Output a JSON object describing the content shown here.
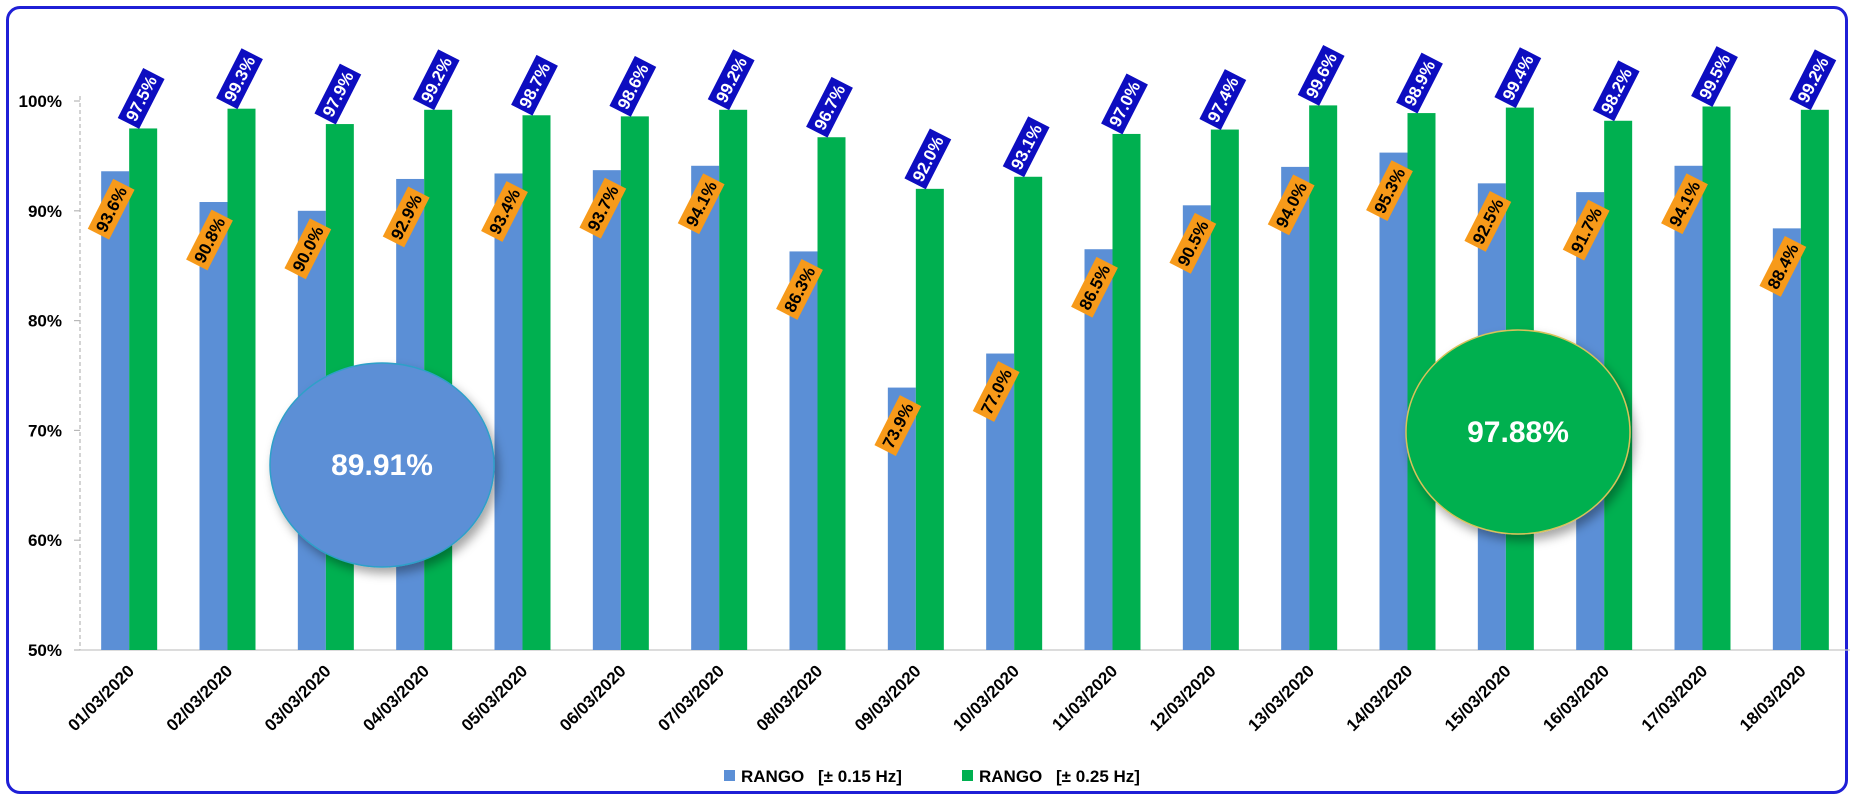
{
  "chart_data": {
    "type": "bar",
    "categories": [
      "01/03/2020",
      "02/03/2020",
      "03/03/2020",
      "04/03/2020",
      "05/03/2020",
      "06/03/2020",
      "07/03/2020",
      "08/03/2020",
      "09/03/2020",
      "10/03/2020",
      "11/03/2020",
      "12/03/2020",
      "13/03/2020",
      "14/03/2020",
      "15/03/2020",
      "16/03/2020",
      "17/03/2020",
      "18/03/2020"
    ],
    "series": [
      {
        "name": "RANGO [± 0.15 Hz]",
        "color": "#5b8fd6",
        "label_bg": "#f79a1a",
        "values": [
          93.6,
          90.8,
          90.0,
          92.9,
          93.4,
          93.7,
          94.1,
          86.3,
          73.9,
          77.0,
          86.5,
          90.5,
          94.0,
          95.3,
          92.5,
          91.7,
          94.1,
          88.4
        ],
        "labels": [
          "93.6%",
          "90.8%",
          "90.0%",
          "92.9%",
          "93.4%",
          "93.7%",
          "94.1%",
          "86.3%",
          "73.9%",
          "77.0%",
          "86.5%",
          "90.5%",
          "94.0%",
          "95.3%",
          "92.5%",
          "91.7%",
          "94.1%",
          "88.4%"
        ]
      },
      {
        "name": "RANGO [± 0.25 Hz]",
        "color": "#00b050",
        "label_bg": "#0d0dc0",
        "values": [
          97.5,
          99.3,
          97.9,
          99.2,
          98.7,
          98.6,
          99.2,
          96.7,
          92.0,
          93.1,
          97.0,
          97.4,
          99.6,
          98.9,
          99.4,
          98.2,
          99.5,
          99.2
        ],
        "labels": [
          "97.5%",
          "99.3%",
          "97.9%",
          "99.2%",
          "98.7%",
          "98.6%",
          "99.2%",
          "96.7%",
          "92.0%",
          "93.1%",
          "97.0%",
          "97.4%",
          "99.6%",
          "98.9%",
          "99.4%",
          "98.2%",
          "99.5%",
          "99.2%"
        ]
      }
    ],
    "ylim": [
      50,
      100
    ],
    "yticks": [
      "50%",
      "60%",
      "70%",
      "80%",
      "90%",
      "100%"
    ],
    "ytick_values": [
      50,
      60,
      70,
      80,
      90,
      100
    ],
    "legend": {
      "position": "bottom",
      "items": [
        {
          "prefix": "RANGO",
          "suffix": "[± 0.15 Hz]",
          "color": "#5b8fd6"
        },
        {
          "prefix": "RANGO",
          "suffix": "[± 0.25 Hz]",
          "color": "#00b050"
        }
      ]
    },
    "annotations": [
      {
        "text": "89.91%",
        "color": "#5b8fd6"
      },
      {
        "text": "97.88%",
        "color": "#00b050"
      }
    ],
    "xlabel": "",
    "ylabel": ""
  }
}
